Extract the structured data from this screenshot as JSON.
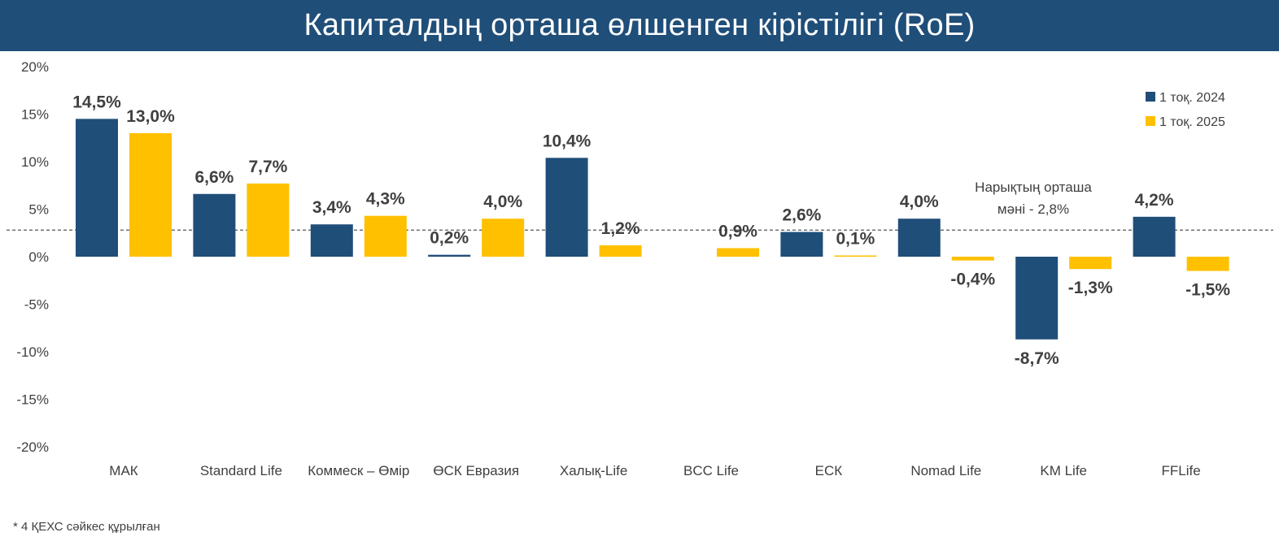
{
  "title": "Капиталдың орташа өлшенген кірістілігі (RoE)",
  "footnote": "* 4 ҚЕХС сәйкес құрылған",
  "colors": {
    "title_bg": "#1f4e79",
    "series_2024": "#1f4e79",
    "series_2025": "#ffc000",
    "text": "#404040"
  },
  "chart_data": {
    "type": "bar",
    "categories": [
      "МАК",
      "Standard Life",
      "Коммеск – Өмір",
      "ӨСК Евразия",
      "Халық-Life",
      "BCC Life",
      "ЕСК",
      "Nomad Life",
      "KM Life",
      "FFLife"
    ],
    "series": [
      {
        "name": "1 тоқ. 2024",
        "values": [
          14.5,
          6.6,
          3.4,
          0.2,
          10.4,
          null,
          2.6,
          4.0,
          -8.7,
          4.2
        ],
        "labels": [
          "14,5%",
          "6,6%",
          "3,4%",
          "0,2%",
          "10,4%",
          "",
          "2,6%",
          "4,0%",
          "-8,7%",
          "4,2%"
        ]
      },
      {
        "name": "1 тоқ. 2025",
        "values": [
          13.0,
          7.7,
          4.3,
          4.0,
          1.2,
          0.9,
          0.1,
          -0.4,
          -1.3,
          -1.5
        ],
        "labels": [
          "13,0%",
          "7,7%",
          "4,3%",
          "4,0%",
          "1,2%",
          "0,9%",
          "0,1%",
          "-0,4%",
          "-1,3%",
          "-1,5%"
        ]
      }
    ],
    "ylim": [
      -20,
      20
    ],
    "yticks": [
      20,
      15,
      10,
      5,
      0,
      -5,
      -10,
      -15,
      -20
    ],
    "ytick_labels": [
      "20%",
      "15%",
      "10%",
      "5%",
      "0%",
      "-5%",
      "-10%",
      "-15%",
      "-20%"
    ],
    "reference_line": {
      "value": 2.8,
      "label_line1": "Нарықтың орташа",
      "label_line2": "мәні - 2,8%",
      "style": "dashed"
    },
    "legend_position": "top-right",
    "grid": false
  }
}
